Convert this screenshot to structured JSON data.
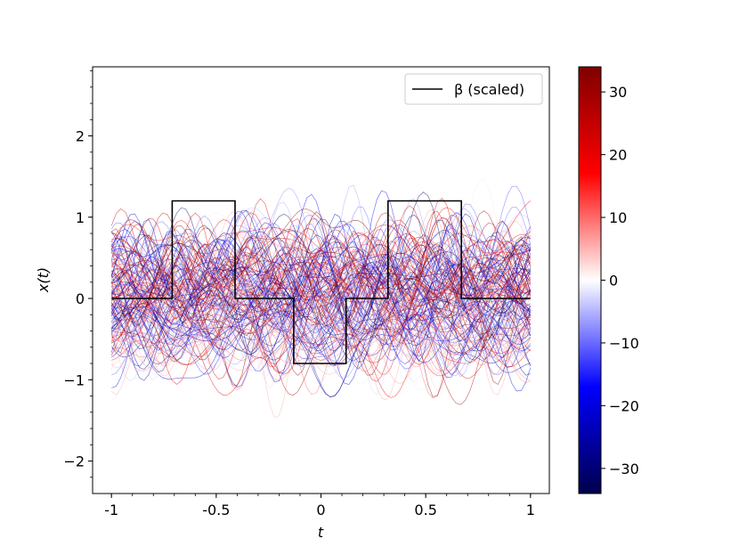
{
  "chart_data": {
    "type": "line",
    "xlabel": "t",
    "ylabel": "x(t)",
    "xlim": [
      -1.09,
      1.09
    ],
    "ylim": [
      -2.4,
      2.85
    ],
    "x_ticks": [
      -1,
      -0.5,
      0,
      0.5,
      1
    ],
    "x_tick_labels": [
      "-1",
      "-0.5",
      "0",
      "0.5",
      "1"
    ],
    "y_ticks": [
      2,
      1,
      0,
      -1,
      -2
    ],
    "y_tick_labels": [
      "2",
      "1",
      "0",
      "−1",
      "−2"
    ],
    "grid": false,
    "legend": {
      "position": "top-right",
      "label": "β (scaled)"
    },
    "beta_series": {
      "name": "β (scaled)",
      "color": "#000000",
      "segments": [
        {
          "x0": -1.0,
          "x1": -0.71,
          "y": 0
        },
        {
          "x0": -0.71,
          "x1": -0.41,
          "y": 1.2
        },
        {
          "x0": -0.41,
          "x1": -0.13,
          "y": 0
        },
        {
          "x0": -0.13,
          "x1": 0.12,
          "y": -0.8
        },
        {
          "x0": 0.12,
          "x1": 0.32,
          "y": 0
        },
        {
          "x0": 0.32,
          "x1": 0.67,
          "y": 1.2
        },
        {
          "x0": 0.67,
          "x1": 1.0,
          "y": 0
        }
      ]
    },
    "curves": {
      "count": 150,
      "x_range": [
        -1,
        1
      ],
      "y_spread": [
        -2.2,
        2.6
      ],
      "colormap": "seismic",
      "color_value_range": [
        -33,
        33
      ]
    },
    "colorbar": {
      "min": -34,
      "max": 34,
      "ticks": [
        30,
        20,
        10,
        0,
        -10,
        -20,
        -30
      ],
      "tick_labels": [
        "30",
        "20",
        "10",
        "0",
        "−10",
        "−20",
        "−30"
      ],
      "colors": {
        "low": "#00004c",
        "mid_low": "#0000ff",
        "center": "#ffffff",
        "mid_high": "#ff0000",
        "high": "#800000"
      }
    }
  }
}
